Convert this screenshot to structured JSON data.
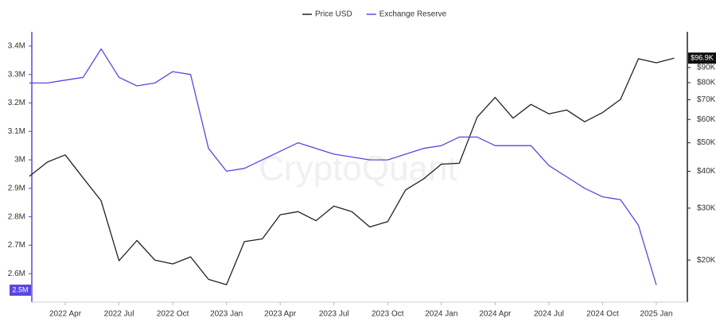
{
  "chart_data": {
    "type": "line",
    "watermark": "CryptoQuant",
    "x": [
      "2022-02",
      "2022-03",
      "2022-04",
      "2022-05",
      "2022-06",
      "2022-07",
      "2022-08",
      "2022-09",
      "2022-10",
      "2022-11",
      "2022-12",
      "2023-01",
      "2023-02",
      "2023-03",
      "2023-04",
      "2023-05",
      "2023-06",
      "2023-07",
      "2023-08",
      "2023-09",
      "2023-10",
      "2023-11",
      "2023-12",
      "2024-01",
      "2024-02",
      "2024-03",
      "2024-04",
      "2024-05",
      "2024-06",
      "2024-07",
      "2024-08",
      "2024-09",
      "2024-10",
      "2024-11",
      "2024-12",
      "2025-01",
      "2025-02"
    ],
    "xlim": [
      "2022-02",
      "2025-02"
    ],
    "xticks": [
      {
        "value": "2022-04",
        "label": "2022 Apr"
      },
      {
        "value": "2022-07",
        "label": "2022 Jul"
      },
      {
        "value": "2022-10",
        "label": "2022 Oct"
      },
      {
        "value": "2023-01",
        "label": "2023 Jan"
      },
      {
        "value": "2023-04",
        "label": "2023 Apr"
      },
      {
        "value": "2023-07",
        "label": "2023 Jul"
      },
      {
        "value": "2023-10",
        "label": "2023 Oct"
      },
      {
        "value": "2024-01",
        "label": "2024 Jan"
      },
      {
        "value": "2024-04",
        "label": "2024 Apr"
      },
      {
        "value": "2024-07",
        "label": "2024 Jul"
      },
      {
        "value": "2024-10",
        "label": "2024 Oct"
      },
      {
        "value": "2025-01",
        "label": "2025 Jan"
      }
    ],
    "series": [
      {
        "name": "Price USD",
        "color": "#222222",
        "axis": "y2",
        "values": [
          38500,
          43000,
          45500,
          38000,
          31800,
          19900,
          23300,
          20000,
          19400,
          20500,
          17200,
          16500,
          23100,
          23600,
          28500,
          29200,
          27200,
          30500,
          29200,
          25900,
          27000,
          34600,
          37700,
          42300,
          42600,
          61100,
          71300,
          60600,
          67500,
          62700,
          64600,
          58900,
          63300,
          70200,
          96400,
          93400,
          96900
        ]
      },
      {
        "name": "Exchange Reserve",
        "color": "#5a46e0",
        "axis": "y",
        "values": [
          3270000,
          3270000,
          3280000,
          3290000,
          3390000,
          3290000,
          3260000,
          3270000,
          3310000,
          3300000,
          3040000,
          2960000,
          2970000,
          3000000,
          3030000,
          3060000,
          3040000,
          3020000,
          3010000,
          3000000,
          3000000,
          3020000,
          3040000,
          3050000,
          3080000,
          3080000,
          3050000,
          3050000,
          3050000,
          2980000,
          2940000,
          2900000,
          2870000,
          2860000,
          2770000,
          2560000,
          null
        ]
      }
    ],
    "ylim": [
      2500000,
      3450000
    ],
    "yticks": [
      {
        "value": 3400000,
        "label": "3.4M"
      },
      {
        "value": 3300000,
        "label": "3.3M"
      },
      {
        "value": 3200000,
        "label": "3.2M"
      },
      {
        "value": 3100000,
        "label": "3.1M"
      },
      {
        "value": 3000000,
        "label": "3M"
      },
      {
        "value": 2900000,
        "label": "2.9M"
      },
      {
        "value": 2800000,
        "label": "2.8M"
      },
      {
        "value": 2700000,
        "label": "2.7M"
      },
      {
        "value": 2600000,
        "label": "2.6M"
      }
    ],
    "y2lim": [
      14400,
      119000
    ],
    "y2log": true,
    "y2ticks": [
      {
        "value": 90000,
        "label": "$90K"
      },
      {
        "value": 80000,
        "label": "$80K"
      },
      {
        "value": 70000,
        "label": "$70K"
      },
      {
        "value": 60000,
        "label": "$60K"
      },
      {
        "value": 50000,
        "label": "$50K"
      },
      {
        "value": 40000,
        "label": "$40K"
      },
      {
        "value": 30000,
        "label": "$30K"
      },
      {
        "value": 20000,
        "label": "$20K"
      }
    ],
    "annotations": [
      {
        "label": "$96.9K",
        "value": 96900,
        "axis": "y2"
      },
      {
        "label": "2.5M",
        "value": 2500000,
        "axis": "y"
      }
    ],
    "grid": false
  }
}
